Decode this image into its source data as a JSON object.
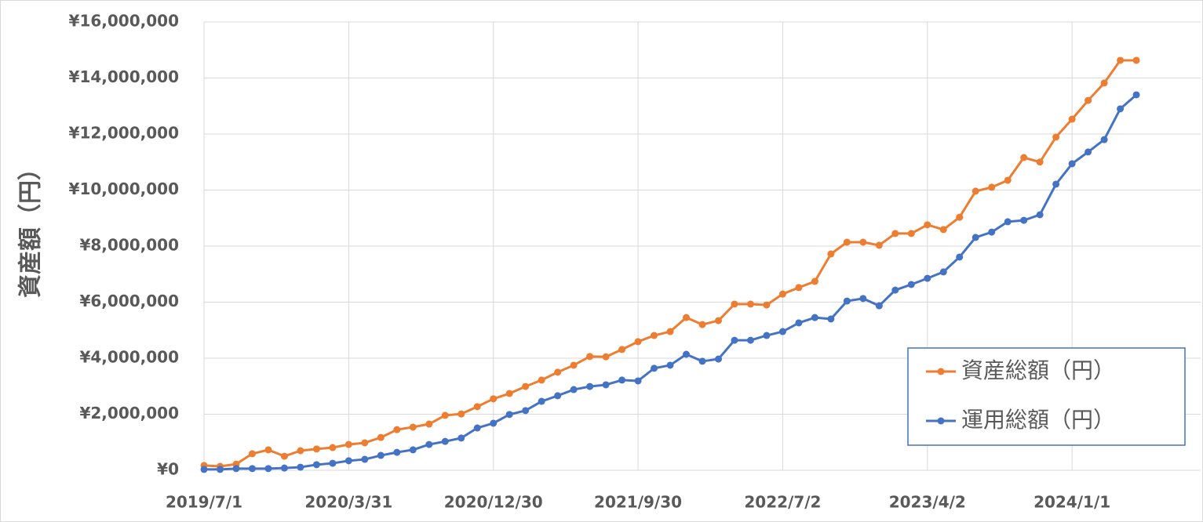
{
  "chart_data": {
    "type": "line",
    "y_label": "資産額（円）",
    "categories": [
      "2019/7/1",
      null,
      null,
      null,
      null,
      null,
      null,
      null,
      null,
      "2020/3/31",
      null,
      null,
      null,
      null,
      null,
      null,
      null,
      null,
      "2020/12/30",
      null,
      null,
      null,
      null,
      null,
      null,
      null,
      null,
      "2021/9/30",
      null,
      null,
      null,
      null,
      null,
      null,
      null,
      null,
      "2022/7/2",
      null,
      null,
      null,
      null,
      null,
      null,
      null,
      null,
      "2023/4/2",
      null,
      null,
      null,
      null,
      null,
      null,
      null,
      null,
      "2024/1/1",
      null,
      null,
      null,
      null
    ],
    "series": [
      {
        "name": "資産総額（円）",
        "color": "#ed7d31",
        "values": [
          170000,
          140000,
          220000,
          590000,
          730000,
          500000,
          700000,
          760000,
          810000,
          920000,
          980000,
          1170000,
          1450000,
          1540000,
          1650000,
          1960000,
          2010000,
          2270000,
          2550000,
          2740000,
          2990000,
          3220000,
          3500000,
          3750000,
          4060000,
          4050000,
          4310000,
          4590000,
          4810000,
          4950000,
          5450000,
          5200000,
          5340000,
          5930000,
          5930000,
          5900000,
          6290000,
          6520000,
          6740000,
          7720000,
          8140000,
          8140000,
          8030000,
          8450000,
          8450000,
          8760000,
          8590000,
          9030000,
          9960000,
          10100000,
          10350000,
          11160000,
          11000000,
          11890000,
          12530000,
          13200000,
          13820000,
          14630000,
          14630000
        ]
      },
      {
        "name": "運用総額（円）",
        "color": "#4472c4",
        "values": [
          30000,
          30000,
          60000,
          60000,
          60000,
          80000,
          110000,
          200000,
          250000,
          340000,
          390000,
          530000,
          640000,
          730000,
          920000,
          1030000,
          1150000,
          1510000,
          1680000,
          1990000,
          2130000,
          2460000,
          2660000,
          2880000,
          2990000,
          3050000,
          3220000,
          3190000,
          3640000,
          3750000,
          4140000,
          3890000,
          3970000,
          4640000,
          4640000,
          4810000,
          4950000,
          5260000,
          5450000,
          5400000,
          6040000,
          6130000,
          5870000,
          6430000,
          6630000,
          6850000,
          7080000,
          7610000,
          8310000,
          8500000,
          8870000,
          8920000,
          9120000,
          10210000,
          10940000,
          11360000,
          11800000,
          12900000,
          13400000
        ]
      }
    ],
    "ylim": [
      0,
      16000000
    ],
    "yticks": [
      {
        "value": 0,
        "label": "¥0"
      },
      {
        "value": 2000000,
        "label": "¥2,000,000"
      },
      {
        "value": 4000000,
        "label": "¥4,000,000"
      },
      {
        "value": 6000000,
        "label": "¥6,000,000"
      },
      {
        "value": 8000000,
        "label": "¥8,000,000"
      },
      {
        "value": 10000000,
        "label": "¥10,000,000"
      },
      {
        "value": 12000000,
        "label": "¥12,000,000"
      },
      {
        "value": 14000000,
        "label": "¥14,000,000"
      },
      {
        "value": 16000000,
        "label": "¥16,000,000"
      }
    ],
    "grid": true,
    "legend": "lower right"
  }
}
